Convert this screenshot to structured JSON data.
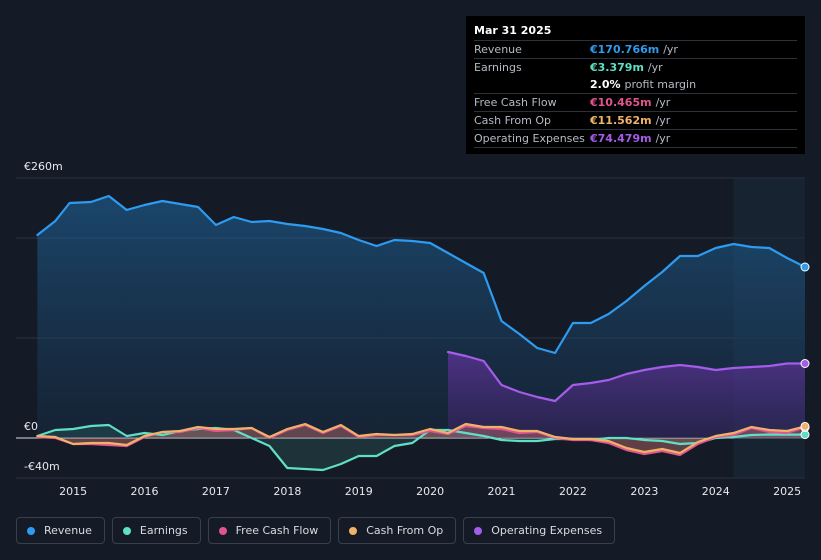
{
  "tooltip": {
    "date": "Mar 31 2025",
    "rows": [
      {
        "label": "Revenue",
        "value": "€170.766m",
        "unit": "/yr",
        "color": "#2d9bf0"
      },
      {
        "label": "Earnings",
        "value": "€3.379m",
        "unit": "/yr",
        "color": "#5ee0c6"
      },
      {
        "label": "",
        "value": "2.0%",
        "unit": "profit margin",
        "color": "#ffffff"
      },
      {
        "label": "Free Cash Flow",
        "value": "€10.465m",
        "unit": "/yr",
        "color": "#e0558e"
      },
      {
        "label": "Cash From Op",
        "value": "€11.562m",
        "unit": "/yr",
        "color": "#f0b26b"
      },
      {
        "label": "Operating Expenses",
        "value": "€74.479m",
        "unit": "/yr",
        "color": "#a55ce8"
      }
    ]
  },
  "axis": {
    "top_label": "€260m",
    "zero_label": "€0",
    "bottom_label": "-€40m"
  },
  "legend": [
    {
      "label": "Revenue",
      "color": "#2d9bf0"
    },
    {
      "label": "Earnings",
      "color": "#5ee0c6"
    },
    {
      "label": "Free Cash Flow",
      "color": "#e0558e"
    },
    {
      "label": "Cash From Op",
      "color": "#f0b26b"
    },
    {
      "label": "Operating Expenses",
      "color": "#a55ce8"
    }
  ],
  "chart_data": {
    "type": "area",
    "title": "",
    "xlabel": "",
    "ylabel": "",
    "unit": "€m",
    "ylim": [
      -40,
      260
    ],
    "xlim": [
      2014.5,
      2025.25
    ],
    "x_ticks": [
      "2015",
      "2016",
      "2017",
      "2018",
      "2019",
      "2020",
      "2021",
      "2022",
      "2023",
      "2024",
      "2025"
    ],
    "highlight_from": 2024.25,
    "series": [
      {
        "name": "Revenue",
        "color": "#2d9bf0",
        "points": [
          [
            2014.5,
            203
          ],
          [
            2014.75,
            217
          ],
          [
            2014.95,
            235
          ],
          [
            2015.25,
            236
          ],
          [
            2015.5,
            242
          ],
          [
            2015.75,
            228
          ],
          [
            2016.0,
            233
          ],
          [
            2016.25,
            237
          ],
          [
            2016.5,
            234
          ],
          [
            2016.75,
            231
          ],
          [
            2017.0,
            213
          ],
          [
            2017.25,
            221
          ],
          [
            2017.5,
            216
          ],
          [
            2017.75,
            217
          ],
          [
            2018.0,
            214
          ],
          [
            2018.25,
            212
          ],
          [
            2018.5,
            209
          ],
          [
            2018.75,
            205
          ],
          [
            2019.0,
            198
          ],
          [
            2019.25,
            192
          ],
          [
            2019.5,
            198
          ],
          [
            2019.75,
            197
          ],
          [
            2020.0,
            195
          ],
          [
            2020.25,
            185
          ],
          [
            2020.5,
            175
          ],
          [
            2020.75,
            165
          ],
          [
            2021.0,
            117
          ],
          [
            2021.25,
            104
          ],
          [
            2021.5,
            90
          ],
          [
            2021.75,
            85
          ],
          [
            2022.0,
            115
          ],
          [
            2022.25,
            115
          ],
          [
            2022.5,
            124
          ],
          [
            2022.75,
            137
          ],
          [
            2023.0,
            152
          ],
          [
            2023.25,
            166
          ],
          [
            2023.5,
            182
          ],
          [
            2023.75,
            182
          ],
          [
            2024.0,
            190
          ],
          [
            2024.25,
            194
          ],
          [
            2024.5,
            191
          ],
          [
            2024.75,
            190
          ],
          [
            2025.0,
            180
          ],
          [
            2025.25,
            171
          ]
        ]
      },
      {
        "name": "Operating Expenses",
        "color": "#a55ce8",
        "points": [
          [
            2020.25,
            86
          ],
          [
            2020.5,
            82
          ],
          [
            2020.75,
            77
          ],
          [
            2021.0,
            53
          ],
          [
            2021.25,
            46
          ],
          [
            2021.5,
            41
          ],
          [
            2021.75,
            37
          ],
          [
            2022.0,
            53
          ],
          [
            2022.25,
            55
          ],
          [
            2022.5,
            58
          ],
          [
            2022.75,
            64
          ],
          [
            2023.0,
            68
          ],
          [
            2023.25,
            71
          ],
          [
            2023.5,
            73
          ],
          [
            2023.75,
            71
          ],
          [
            2024.0,
            68
          ],
          [
            2024.25,
            70
          ],
          [
            2024.5,
            71
          ],
          [
            2024.75,
            72
          ],
          [
            2025.0,
            74.5
          ],
          [
            2025.25,
            74.5
          ]
        ]
      },
      {
        "name": "Earnings",
        "color": "#5ee0c6",
        "points": [
          [
            2014.5,
            2
          ],
          [
            2014.75,
            8
          ],
          [
            2015.0,
            9
          ],
          [
            2015.25,
            12
          ],
          [
            2015.5,
            13
          ],
          [
            2015.75,
            2
          ],
          [
            2016.0,
            5
          ],
          [
            2016.25,
            3
          ],
          [
            2016.5,
            7
          ],
          [
            2016.75,
            9
          ],
          [
            2017.0,
            10
          ],
          [
            2017.25,
            8
          ],
          [
            2017.5,
            0
          ],
          [
            2017.75,
            -8
          ],
          [
            2018.0,
            -30
          ],
          [
            2018.25,
            -31
          ],
          [
            2018.5,
            -32
          ],
          [
            2018.75,
            -26
          ],
          [
            2019.0,
            -18
          ],
          [
            2019.25,
            -18
          ],
          [
            2019.5,
            -8
          ],
          [
            2019.75,
            -5
          ],
          [
            2020.0,
            8
          ],
          [
            2020.25,
            8
          ],
          [
            2020.5,
            5
          ],
          [
            2020.75,
            2
          ],
          [
            2021.0,
            -2
          ],
          [
            2021.25,
            -3
          ],
          [
            2021.5,
            -3
          ],
          [
            2021.75,
            -1
          ],
          [
            2022.0,
            -1
          ],
          [
            2022.25,
            -2
          ],
          [
            2022.5,
            0
          ],
          [
            2022.75,
            0
          ],
          [
            2023.0,
            -2
          ],
          [
            2023.25,
            -3
          ],
          [
            2023.5,
            -6
          ],
          [
            2023.75,
            -5
          ],
          [
            2024.0,
            0
          ],
          [
            2024.25,
            1
          ],
          [
            2024.5,
            3
          ],
          [
            2024.75,
            3.5
          ],
          [
            2025.0,
            3.4
          ],
          [
            2025.25,
            3.4
          ]
        ]
      },
      {
        "name": "Free Cash Flow",
        "color": "#e0558e",
        "points": [
          [
            2014.5,
            1
          ],
          [
            2014.75,
            0
          ],
          [
            2015.0,
            -6
          ],
          [
            2015.25,
            -6
          ],
          [
            2015.5,
            -7
          ],
          [
            2015.75,
            -8
          ],
          [
            2016.0,
            1
          ],
          [
            2016.25,
            6
          ],
          [
            2016.5,
            6
          ],
          [
            2016.75,
            10
          ],
          [
            2017.0,
            7
          ],
          [
            2017.25,
            8
          ],
          [
            2017.5,
            10
          ],
          [
            2017.75,
            0
          ],
          [
            2018.0,
            8
          ],
          [
            2018.25,
            13
          ],
          [
            2018.5,
            5
          ],
          [
            2018.75,
            12
          ],
          [
            2019.0,
            1
          ],
          [
            2019.25,
            3
          ],
          [
            2019.5,
            3
          ],
          [
            2019.75,
            3
          ],
          [
            2020.0,
            7
          ],
          [
            2020.25,
            4
          ],
          [
            2020.5,
            12
          ],
          [
            2020.75,
            10
          ],
          [
            2021.0,
            9
          ],
          [
            2021.25,
            5
          ],
          [
            2021.5,
            6
          ],
          [
            2021.75,
            0
          ],
          [
            2022.0,
            -2
          ],
          [
            2022.25,
            -2
          ],
          [
            2022.5,
            -5
          ],
          [
            2022.75,
            -12
          ],
          [
            2023.0,
            -16
          ],
          [
            2023.25,
            -13
          ],
          [
            2023.5,
            -17
          ],
          [
            2023.75,
            -6
          ],
          [
            2024.0,
            1
          ],
          [
            2024.25,
            3
          ],
          [
            2024.5,
            10
          ],
          [
            2024.75,
            6
          ],
          [
            2025.0,
            5
          ],
          [
            2025.25,
            10.5
          ]
        ]
      },
      {
        "name": "Cash From Op",
        "color": "#f0b26b",
        "points": [
          [
            2014.5,
            2
          ],
          [
            2014.75,
            1
          ],
          [
            2015.0,
            -6
          ],
          [
            2015.25,
            -5
          ],
          [
            2015.5,
            -5
          ],
          [
            2015.75,
            -7
          ],
          [
            2016.0,
            2
          ],
          [
            2016.25,
            6
          ],
          [
            2016.5,
            7
          ],
          [
            2016.75,
            11
          ],
          [
            2017.0,
            9
          ],
          [
            2017.25,
            9
          ],
          [
            2017.5,
            10
          ],
          [
            2017.75,
            1
          ],
          [
            2018.0,
            9
          ],
          [
            2018.25,
            14
          ],
          [
            2018.5,
            6
          ],
          [
            2018.75,
            13
          ],
          [
            2019.0,
            2
          ],
          [
            2019.25,
            4
          ],
          [
            2019.5,
            3
          ],
          [
            2019.75,
            4
          ],
          [
            2020.0,
            9
          ],
          [
            2020.25,
            5
          ],
          [
            2020.5,
            14
          ],
          [
            2020.75,
            11
          ],
          [
            2021.0,
            11
          ],
          [
            2021.25,
            7
          ],
          [
            2021.5,
            7
          ],
          [
            2021.75,
            1
          ],
          [
            2022.0,
            -1
          ],
          [
            2022.25,
            -1
          ],
          [
            2022.5,
            -3
          ],
          [
            2022.75,
            -10
          ],
          [
            2023.0,
            -14
          ],
          [
            2023.25,
            -11
          ],
          [
            2023.5,
            -15
          ],
          [
            2023.75,
            -4
          ],
          [
            2024.0,
            2
          ],
          [
            2024.25,
            5
          ],
          [
            2024.5,
            11
          ],
          [
            2024.75,
            8
          ],
          [
            2025.0,
            7
          ],
          [
            2025.25,
            11.6
          ]
        ]
      }
    ]
  }
}
